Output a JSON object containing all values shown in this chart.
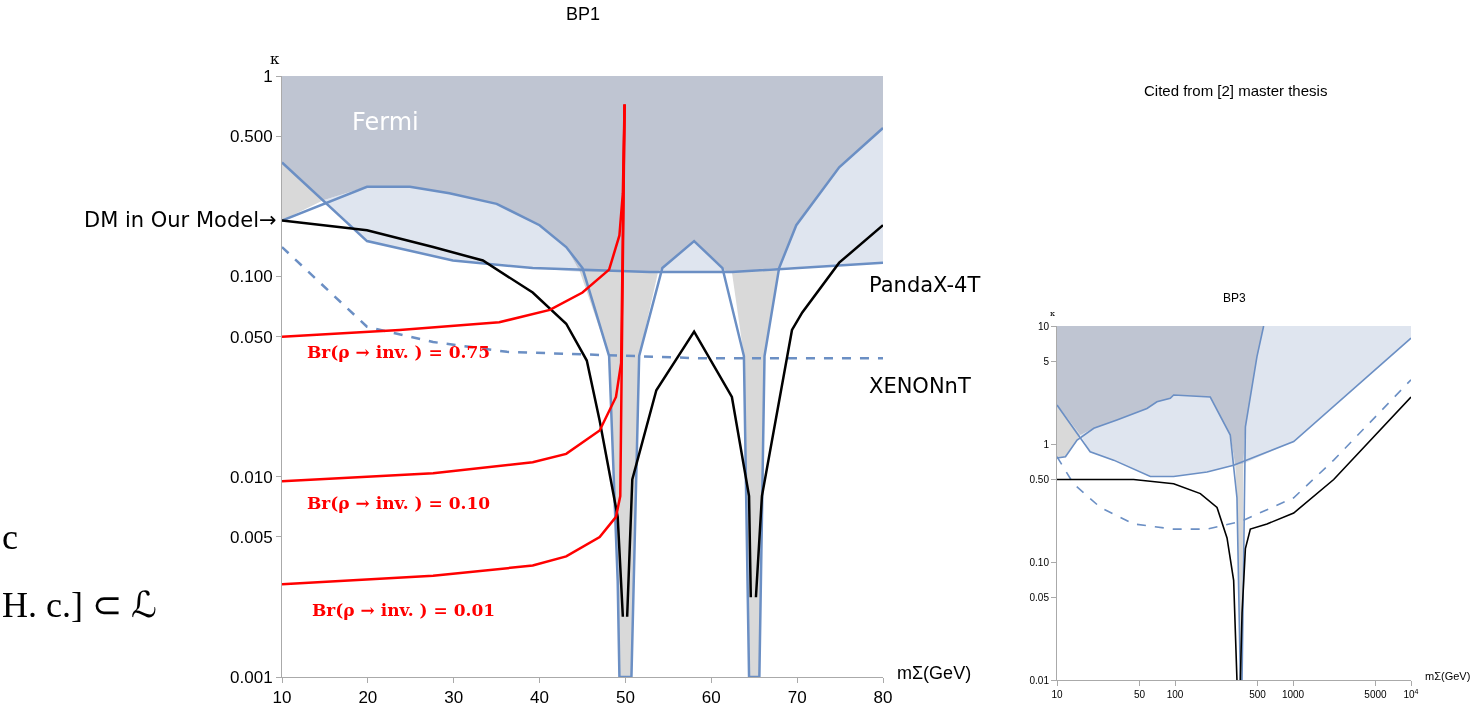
{
  "chart_data": [
    {
      "type": "line",
      "title": "BP1",
      "xlabel": "mΣ(GeV)",
      "ylabel": "κ",
      "log": "y",
      "grid": false,
      "legend": false,
      "marker": "none",
      "xlim": [
        10,
        80
      ],
      "xticks": [
        10,
        20,
        30,
        40,
        50,
        60,
        70,
        80
      ],
      "ylim": [
        0.001,
        1
      ],
      "yticks": [
        {
          "value": 0.001,
          "label": "0.001"
        },
        {
          "value": 0.005,
          "label": "0.005"
        },
        {
          "value": 0.01,
          "label": "0.010"
        },
        {
          "value": 0.05,
          "label": "0.050"
        },
        {
          "value": 0.1,
          "label": "0.100"
        },
        {
          "value": 0.5,
          "label": "0.500"
        },
        1
      ],
      "series": [
        {
          "type": "area",
          "color": "#d9d9d9",
          "x": [
            10,
            14.8,
            10,
            null,
            44.7,
            48.1,
            49.1,
            49.3,
            50.7,
            51.6,
            53.8,
            null,
            62.4,
            63.8,
            64.4,
            65.6,
            66.2,
            67.9
          ],
          "values": [
            0.19,
            0.24,
            0.37,
            null,
            0.105,
            0.04,
            0.003,
            0.001,
            0.001,
            0.04,
            0.105,
            null,
            0.105,
            0.04,
            0.001,
            0.001,
            0.04,
            0.11
          ]
        },
        {
          "type": "area",
          "color": "#dfe5ef",
          "x": [
            14.8,
            19.9,
            24.9,
            29.5,
            35.0,
            40.0,
            43.1,
            44.7,
            39.2,
            29.9,
            19.9,
            null,
            53.8,
            54.3,
            58.0,
            61.3,
            61.8,
            null,
            67.9,
            69.9,
            74.9,
            80,
            80
          ],
          "values": [
            0.24,
            0.28,
            0.28,
            0.26,
            0.23,
            0.18,
            0.14,
            0.105,
            0.11,
            0.12,
            0.15,
            null,
            0.105,
            0.11,
            0.15,
            0.11,
            0.105,
            null,
            0.11,
            0.18,
            0.35,
            0.55,
            0.117
          ]
        },
        {
          "type": "area",
          "color": "#bfc5d2",
          "x": [
            10,
            14.8,
            19.9,
            24.9,
            29.5,
            35.0,
            40.0,
            43.1,
            44.7,
            53.8,
            54.3,
            58.0,
            61.3,
            61.8,
            67.9,
            69.9,
            74.9,
            80,
            80,
            10
          ],
          "values": [
            0.37,
            0.24,
            0.28,
            0.28,
            0.26,
            0.23,
            0.18,
            0.14,
            0.105,
            0.105,
            0.11,
            0.15,
            0.11,
            0.105,
            0.11,
            0.18,
            0.35,
            0.55,
            1,
            1
          ]
        },
        {
          "color": "#6b8fc4",
          "x": [
            10,
            19.9,
            24.9,
            29.5,
            35.0,
            40.0,
            43.1,
            45.0,
            48.1,
            49.1,
            49.3,
            50.7,
            51.6,
            54.3,
            58.0,
            61.3,
            63.8,
            64.4,
            65.6,
            66.2,
            67.9,
            69.9,
            74.9,
            80
          ],
          "values": [
            0.19,
            0.28,
            0.28,
            0.26,
            0.23,
            0.18,
            0.14,
            0.11,
            0.04,
            0.003,
            0.001,
            0.001,
            0.04,
            0.11,
            0.15,
            0.11,
            0.04,
            0.001,
            0.001,
            0.04,
            0.11,
            0.18,
            0.35,
            0.55
          ]
        },
        {
          "name": "PandaX-4T",
          "color": "#6b8fc4",
          "x": [
            10,
            19.9,
            29.9,
            39.2,
            52.8,
            62.4,
            80
          ],
          "values": [
            0.37,
            0.15,
            0.12,
            0.11,
            0.105,
            0.105,
            0.117
          ]
        },
        {
          "name": "XENONnT",
          "color": "#6b8fc4",
          "line_style": "dashed",
          "x": [
            10,
            19.9,
            27.6,
            36.2,
            58.6,
            80
          ],
          "values": [
            0.14,
            0.056,
            0.047,
            0.042,
            0.039,
            0.039
          ]
        },
        {
          "name": "DM in Our Model→",
          "color": "#000000",
          "x": [
            10,
            19.9,
            27.6,
            33.4,
            39.2,
            43.1,
            45.5,
            47.0,
            49.1,
            49.7,
            50.0,
            50.2,
            50.8,
            53.6,
            58.0,
            62.4,
            64.4,
            64.6,
            64.9,
            65.2,
            65.9,
            69.4,
            70.6,
            74.9,
            80
          ],
          "values": [
            0.19,
            0.17,
            0.14,
            0.12,
            0.083,
            0.058,
            0.038,
            0.019,
            0.0063,
            0.002,
            null,
            0.002,
            0.0097,
            0.027,
            0.053,
            0.025,
            0.008,
            0.0025,
            null,
            0.0025,
            0.008,
            0.054,
            0.066,
            0.117,
            0.18
          ]
        },
        {
          "color": "#ff0000",
          "x": [
            10,
            23.7,
            35.3,
            41.2,
            45.0,
            48.1,
            49.3,
            49.7,
            49.9
          ],
          "values": [
            0.05,
            0.054,
            0.059,
            0.068,
            0.083,
            0.108,
            0.16,
            0.26,
            0.72
          ]
        },
        {
          "color": "#ff0000",
          "x": [
            10,
            27.6,
            39.2,
            43.1,
            47.0,
            48.9,
            49.5,
            49.9
          ],
          "values": [
            0.0095,
            0.0104,
            0.0118,
            0.013,
            0.017,
            0.025,
            0.037,
            0.72
          ]
        },
        {
          "color": "#ff0000",
          "x": [
            10,
            27.6,
            39.2,
            43.1,
            47.0,
            48.9,
            49.4,
            49.9
          ],
          "values": [
            0.0029,
            0.0032,
            0.0036,
            0.004,
            0.005,
            0.0063,
            0.008,
            0.72
          ]
        }
      ],
      "annotations": [
        "Fermi",
        "Br(ρ → inv. ) = 0.75",
        "Br(ρ → inv. ) = 0.10",
        "Br(ρ → inv. ) = 0.01",
        "Cited from [2] master thesis",
        "c",
        "H. c.] ⊂ ℒ"
      ]
    },
    {
      "type": "line",
      "title": "BP3",
      "xlabel": "mΣ(GeV)",
      "ylabel": "κ",
      "log": "xy",
      "grid": false,
      "legend": false,
      "marker": "none",
      "xlim": [
        10,
        10000
      ],
      "xticks": [
        10,
        50,
        100,
        500,
        1000,
        5000,
        {
          "value": 10000,
          "label": "10$^{4}$"
        }
      ],
      "ylim": [
        0.01,
        10
      ],
      "yticks": [
        0.01,
        0.05,
        {
          "value": 0.1,
          "label": "0.10"
        },
        {
          "value": 0.5,
          "label": "0.50"
        },
        1,
        5,
        10
      ],
      "series": [
        {
          "type": "area",
          "color": "#d9d9d9",
          "x": [
            10,
            11.8,
            15.8,
            10,
            null,
            324,
            335,
            358,
            370,
            380
          ],
          "values": [
            0.76,
            0.78,
            1.19,
            2.14,
            null,
            0.66,
            0.35,
            0.01,
            0.01,
            0.68
          ]
        },
        {
          "type": "area",
          "color": "#dfe5ef",
          "x": [
            15.8,
            19.1,
            30.2,
            61.8,
            97.4,
            187,
            314,
            324,
            294,
            199,
            97.4,
            91.2,
            70.3,
            57.9,
            32.2,
            20.5,
            null,
            380,
            1014,
            10000,
            10000,
            564,
            495,
            395
          ],
          "values": [
            1.19,
            0.86,
            0.73,
            0.53,
            0.53,
            0.58,
            0.66,
            0.66,
            1.19,
            2.5,
            2.6,
            2.44,
            2.28,
            2.0,
            1.6,
            1.36,
            null,
            0.68,
            1.05,
            7.9,
            10,
            10,
            5.5,
            1.4
          ]
        },
        {
          "type": "area",
          "color": "#bfc5d2",
          "x": [
            10,
            15.8,
            20.5,
            32.2,
            57.9,
            70.3,
            91.2,
            97.4,
            199,
            294,
            324,
            380,
            395,
            495,
            564,
            10
          ],
          "values": [
            2.14,
            1.19,
            1.36,
            1.6,
            2.0,
            2.28,
            2.44,
            2.6,
            2.5,
            1.19,
            0.66,
            0.68,
            1.4,
            5.5,
            10,
            10
          ]
        },
        {
          "color": "#6b8fc4",
          "x": [
            10,
            11.8,
            14.8,
            20.5,
            32.2,
            57.9,
            70.3,
            91.2,
            97.4,
            199,
            294,
            335,
            358,
            370,
            395,
            495,
            564
          ],
          "values": [
            0.76,
            0.78,
            1.08,
            1.36,
            1.6,
            2.0,
            2.28,
            2.44,
            2.6,
            2.5,
            1.19,
            0.35,
            0.01,
            0.01,
            1.4,
            5.5,
            10
          ]
        },
        {
          "color": "#6b8fc4",
          "x": [
            10,
            19.1,
            30.2,
            61.8,
            97.4,
            187,
            314,
            1014,
            10000
          ],
          "values": [
            2.14,
            0.86,
            0.73,
            0.53,
            0.53,
            0.58,
            0.66,
            1.05,
            7.9
          ]
        },
        {
          "color": "#6b8fc4",
          "line_style": "dashed",
          "x": [
            10,
            13.8,
            23.3,
            44.6,
            97.4,
            187,
            358,
            1014,
            2213,
            10000
          ],
          "values": [
            0.78,
            0.46,
            0.29,
            0.21,
            0.19,
            0.19,
            0.22,
            0.35,
            0.73,
            3.5
          ]
        },
        {
          "color": "#000000",
          "x": [
            10,
            44.6,
            97.4,
            164,
            227,
            276,
            314,
            335,
            345,
            358,
            370,
            395,
            435,
            602,
            1014,
            2213,
            10000
          ],
          "values": [
            0.5,
            0.5,
            0.46,
            0.38,
            0.29,
            0.16,
            0.07,
            0.01,
            null,
            0.01,
            0.037,
            0.13,
            0.19,
            0.21,
            0.26,
            0.5,
            2.5
          ]
        }
      ]
    }
  ]
}
